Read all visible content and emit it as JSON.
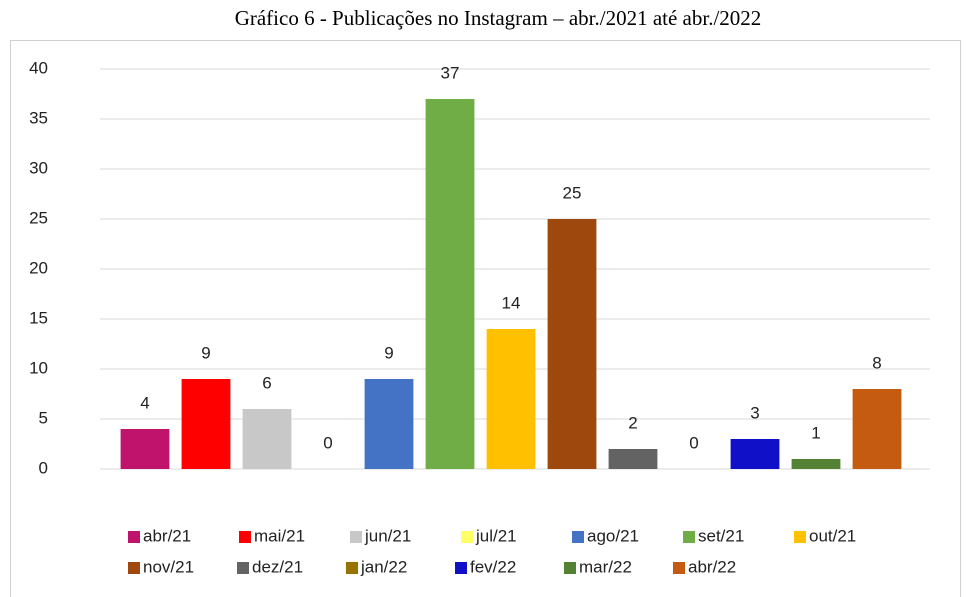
{
  "chart_data": {
    "type": "bar",
    "title": "Gráfico 6 - Publicações no Instagram – abr./2021 até abr./2022",
    "categories": [
      "abr/21",
      "mai/21",
      "jun/21",
      "jul/21",
      "ago/21",
      "set/21",
      "out/21",
      "nov/21",
      "dez/21",
      "jan/22",
      "fev/22",
      "mar/22",
      "abr/22"
    ],
    "values": [
      4,
      9,
      6,
      0,
      9,
      37,
      14,
      25,
      2,
      0,
      3,
      1,
      8
    ],
    "colors": [
      "#c0146c",
      "#ff0000",
      "#c8c8c8",
      "#ffff66",
      "#4472c4",
      "#70ad47",
      "#ffc000",
      "#9e480e",
      "#636363",
      "#997300",
      "#1010c8",
      "#548235",
      "#c55a11"
    ],
    "ylim": [
      0,
      40
    ],
    "yticks": [
      0,
      5,
      10,
      15,
      20,
      25,
      30,
      35,
      40
    ],
    "grid": true,
    "legend": "bottom"
  }
}
